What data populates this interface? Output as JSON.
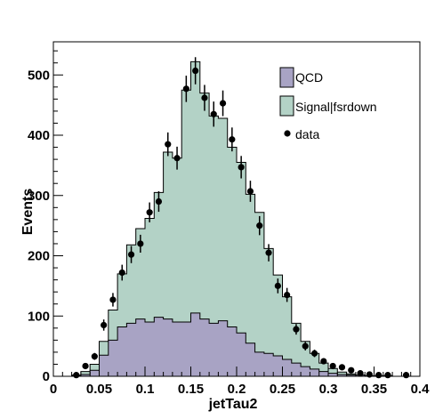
{
  "chart_data": {
    "type": "histogram",
    "xlabel": "jetTau2",
    "ylabel": "Events",
    "xlim": [
      0,
      0.4
    ],
    "ylim": [
      0,
      555
    ],
    "bin_width": 0.01,
    "bin_edges_start": 0,
    "x_ticks": [
      0,
      0.05,
      0.1,
      0.15,
      0.2,
      0.25,
      0.3,
      0.35,
      0.4
    ],
    "x_tick_labels": [
      "0",
      "0.05",
      "0.1",
      "0.15",
      "0.2",
      "0.25",
      "0.3",
      "0.35",
      "0.4"
    ],
    "y_ticks": [
      0,
      100,
      200,
      300,
      400,
      500
    ],
    "y_tick_labels": [
      "0",
      "100",
      "200",
      "300",
      "400",
      "500"
    ],
    "legend_position": "top-right",
    "series": [
      {
        "name": "QCD",
        "kind": "filled-histogram",
        "color": "#a8a3c4",
        "values": [
          0,
          0,
          1,
          3,
          10,
          35,
          60,
          82,
          88,
          95,
          90,
          98,
          95,
          90,
          90,
          105,
          95,
          88,
          92,
          82,
          72,
          55,
          40,
          38,
          34,
          28,
          22,
          16,
          12,
          8,
          5,
          3,
          2,
          2,
          1,
          1,
          1,
          0,
          0,
          0
        ]
      },
      {
        "name": "Signal|fsrdown",
        "kind": "stacked-histogram",
        "color": "#b3d2c6",
        "stack_totals": [
          0,
          0,
          2,
          8,
          20,
          58,
          110,
          170,
          218,
          245,
          262,
          305,
          372,
          362,
          475,
          522,
          470,
          432,
          428,
          380,
          355,
          302,
          272,
          212,
          168,
          132,
          88,
          58,
          38,
          22,
          13,
          7,
          4,
          2,
          1,
          1,
          1,
          0,
          0,
          0
        ]
      },
      {
        "name": "data",
        "kind": "points",
        "color": "#000000",
        "x": [
          0.025,
          0.035,
          0.045,
          0.055,
          0.065,
          0.075,
          0.085,
          0.095,
          0.105,
          0.115,
          0.125,
          0.135,
          0.145,
          0.155,
          0.165,
          0.175,
          0.185,
          0.195,
          0.205,
          0.215,
          0.225,
          0.235,
          0.245,
          0.255,
          0.265,
          0.275,
          0.285,
          0.295,
          0.305,
          0.315,
          0.325,
          0.335,
          0.345,
          0.355,
          0.365,
          0.385
        ],
        "y": [
          2,
          17,
          33,
          85,
          127,
          172,
          202,
          220,
          272,
          290,
          385,
          362,
          477,
          507,
          462,
          435,
          453,
          393,
          347,
          307,
          250,
          205,
          150,
          135,
          78,
          50,
          38,
          25,
          17,
          15,
          10,
          5,
          3,
          2,
          2,
          2
        ]
      }
    ]
  }
}
